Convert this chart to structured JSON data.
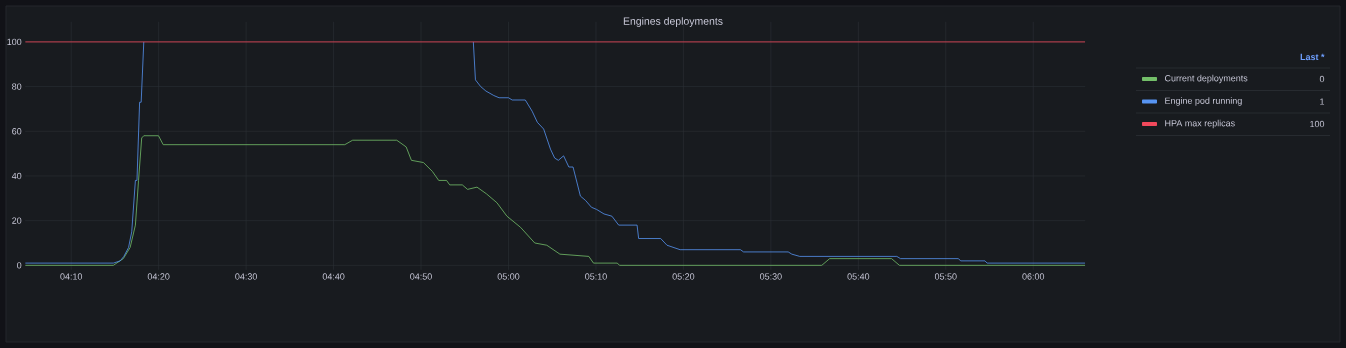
{
  "chart_data": {
    "type": "line",
    "title": "Engines deployments",
    "legend": "right",
    "legend_title": "Last *",
    "grid": true,
    "annotations": [
      "0",
      "1",
      "100"
    ],
    "xlim": [
      4.079,
      6.099
    ],
    "ylim": [
      -2,
      109
    ],
    "xticks": [
      {
        "value": 4.1667,
        "label": "04:10"
      },
      {
        "value": 4.3333,
        "label": "04:20"
      },
      {
        "value": 4.5,
        "label": "04:30"
      },
      {
        "value": 4.6667,
        "label": "04:40"
      },
      {
        "value": 4.8333,
        "label": "04:50"
      },
      {
        "value": 5,
        "label": "05:00"
      },
      {
        "value": 5.1667,
        "label": "05:10"
      },
      {
        "value": 5.3333,
        "label": "05:20"
      },
      {
        "value": 5.5,
        "label": "05:30"
      },
      {
        "value": 5.6667,
        "label": "05:40"
      },
      {
        "value": 5.8333,
        "label": "05:50"
      },
      {
        "value": 6,
        "label": "06:00"
      }
    ],
    "yticks": [
      0,
      20,
      40,
      60,
      80,
      100
    ],
    "series": [
      {
        "name": "Current deployments",
        "color": "#73bf69",
        "x": [
          4.079,
          4.247,
          4.266,
          4.279,
          4.289,
          4.295,
          4.301,
          4.305,
          4.333,
          4.342,
          4.688,
          4.703,
          4.787,
          4.793,
          4.805,
          4.815,
          4.838,
          4.855,
          4.867,
          4.882,
          4.888,
          4.912,
          4.922,
          4.94,
          4.958,
          4.978,
          4.997,
          5.023,
          5.05,
          5.073,
          5.098,
          5.153,
          5.162,
          5.207,
          5.212,
          5.597,
          5.612,
          5.73,
          5.745,
          6.099
        ],
        "values": [
          0,
          0,
          3,
          8,
          18,
          38,
          57,
          58,
          58,
          54,
          54,
          56,
          56,
          55,
          53,
          47,
          46,
          42,
          38,
          38,
          36,
          36,
          34,
          35,
          32,
          28,
          22,
          17,
          10,
          9,
          5,
          4,
          1,
          1,
          0,
          0,
          3,
          3,
          0,
          0
        ]
      },
      {
        "name": "Engine pod running",
        "color": "#5794f2",
        "x": [
          4.079,
          4.247,
          4.26,
          4.267,
          4.276,
          4.282,
          4.289,
          4.292,
          4.297,
          4.3,
          4.305,
          4.6,
          4.933,
          4.937,
          4.947,
          4.957,
          4.972,
          4.982,
          5.0,
          5.007,
          5.032,
          5.045,
          5.055,
          5.067,
          5.08,
          5.088,
          5.095,
          5.105,
          5.115,
          5.123,
          5.137,
          5.147,
          5.158,
          5.168,
          5.182,
          5.197,
          5.21,
          5.245,
          5.248,
          5.29,
          5.302,
          5.327,
          5.442,
          5.448,
          5.533,
          5.54,
          5.555,
          5.74,
          5.747,
          5.857,
          5.862,
          5.908,
          5.912,
          6.099
        ],
        "values": [
          1,
          1,
          2,
          4,
          8,
          15,
          38,
          38,
          73,
          73,
          100,
          null,
          100,
          83,
          80,
          78,
          76,
          75,
          75,
          74,
          74,
          69,
          64,
          61,
          52,
          48,
          47,
          49,
          44,
          44,
          31,
          29,
          26,
          25,
          23,
          22,
          18,
          18,
          12,
          12,
          9,
          7,
          7,
          6,
          6,
          5,
          4,
          4,
          3,
          3,
          2,
          2,
          1,
          1
        ]
      },
      {
        "name": "HPA max replicas",
        "color": "#f2495c",
        "x": [
          4.079,
          6.099
        ],
        "values": [
          100,
          100
        ]
      }
    ]
  }
}
